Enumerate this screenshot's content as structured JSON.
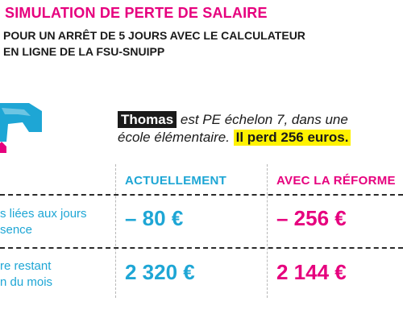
{
  "header": {
    "title": "SIMULATION DE PERTE DE SALAIRE",
    "subtitle_line1": "POUR UN ARRÊT DE 5 JOURS AVEC LE CALCULATEUR",
    "subtitle_line2": "EN LIGNE DE LA FSU-SNUIPP"
  },
  "intro": {
    "name": "Thomas",
    "line1_rest": " est PE échelon 7, dans une",
    "line2_text": "école élémentaire. ",
    "highlight": "Il perd 256 euros."
  },
  "table": {
    "columns": [
      "ACTUELLEMENT",
      "AVEC LA RÉFORME"
    ],
    "rows": [
      {
        "label_line1": "s liées aux jours",
        "label_line2": "sence",
        "values": [
          "– 80 €",
          "– 256 €"
        ]
      },
      {
        "label_line1": "re restant",
        "label_line2": "n du mois",
        "values": [
          "2 320 €",
          "2 144 €"
        ]
      }
    ]
  },
  "colors": {
    "magenta": "#e6007e",
    "cyan": "#1ea6d5",
    "highlight_yellow": "#fff200",
    "text_dark": "#1a1a1a"
  },
  "icons": {
    "logo": "fsu-snuipp-logo-icon"
  }
}
